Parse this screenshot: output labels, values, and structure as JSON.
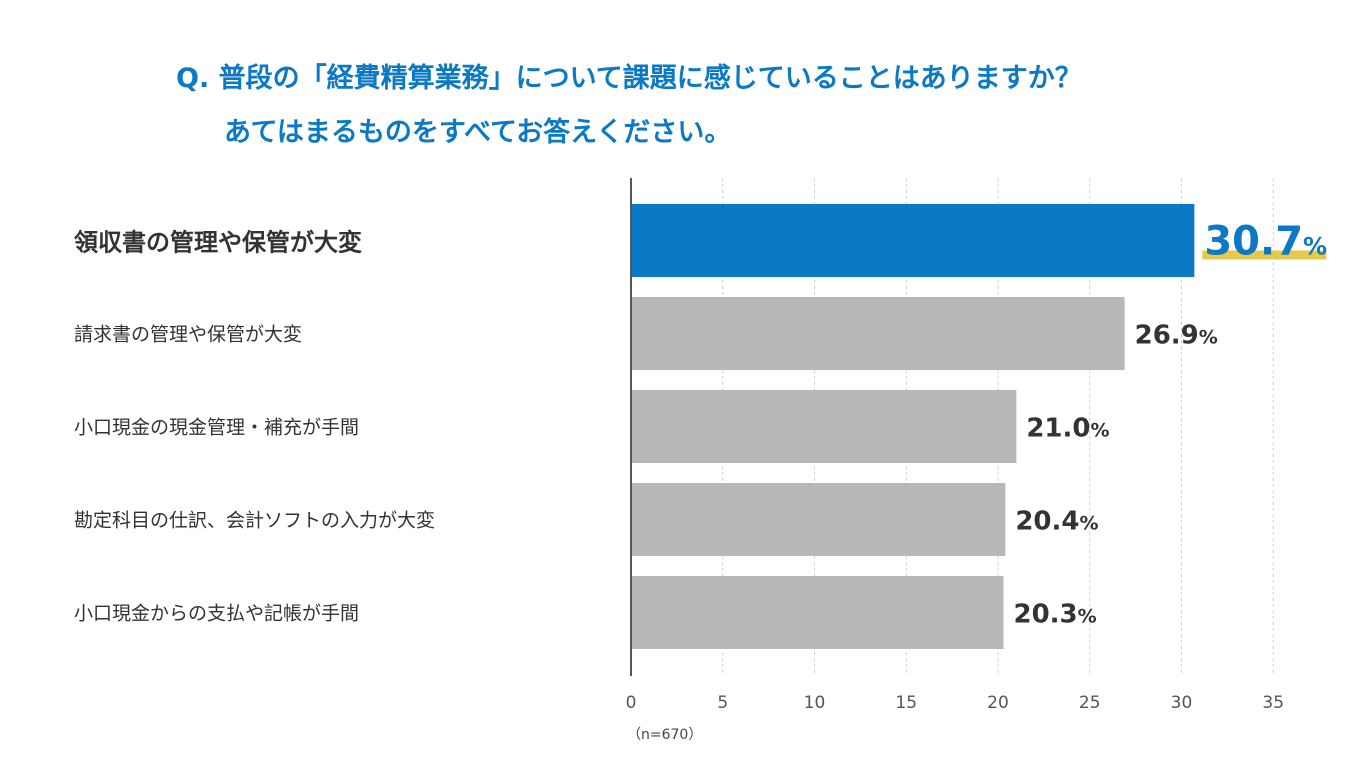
{
  "title": {
    "line1": "Q. 普段の「経費精算業務」について課題に感じていることはありますか？",
    "line2": "あてはまるものをすべてお答えください。"
  },
  "note": "（n=670）",
  "colors": {
    "highlight": "#0b79c5",
    "bar": "#b8b8b8",
    "underline": "#e8c84a",
    "text": "#333333",
    "axis": "#555555",
    "grid": "#cfcfcf"
  },
  "chart_data": {
    "type": "bar",
    "orientation": "horizontal",
    "categories": [
      "領収書の管理や保管が大変",
      "請求書の管理や保管が大変",
      "小口現金の現金管理・補充が手間",
      "勘定科目の仕訳、会計ソフトの入力が大変",
      "小口現金からの支払や記帳が手間"
    ],
    "values": [
      30.7,
      26.9,
      21.0,
      20.4,
      20.3
    ],
    "value_labels": [
      "30.7",
      "26.9",
      "21.0",
      "20.4",
      "20.3"
    ],
    "unit": "%",
    "highlight_index": 0,
    "xlim": [
      0,
      35
    ],
    "xticks": [
      0,
      5,
      10,
      15,
      20,
      25,
      30,
      35
    ],
    "grid": "vertical dashed"
  }
}
